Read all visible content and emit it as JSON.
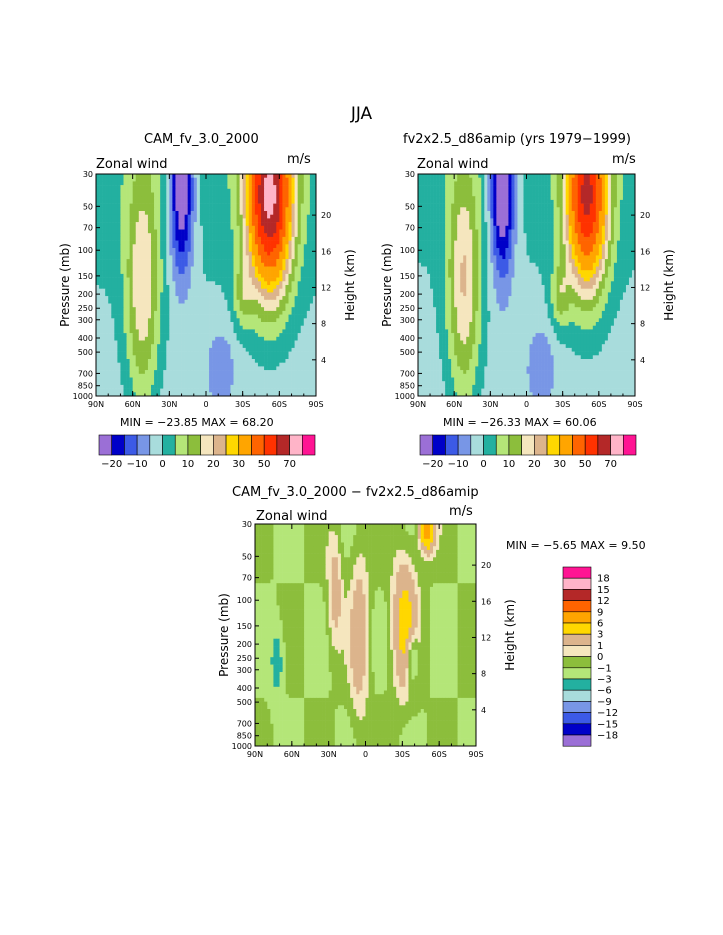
{
  "page": {
    "title": "JJA"
  },
  "palette": {
    "main": [
      "#9b6fd6",
      "#0000c8",
      "#3c5ae6",
      "#7896e6",
      "#a8dcdc",
      "#23b0a0",
      "#b4e678",
      "#8cbe3c",
      "#f5e6be",
      "#dcb48c",
      "#ffd700",
      "#ffa500",
      "#ff6400",
      "#ff3200",
      "#b42828",
      "#ffb4c8",
      "#ff1493"
    ],
    "diff": [
      "#9b6fd6",
      "#0000c8",
      "#3c5ae6",
      "#7896e6",
      "#a8dcdc",
      "#23b0a0",
      "#b4e678",
      "#8cbe3c",
      "#f5e6be",
      "#dcb48c",
      "#ffd700",
      "#ffa500",
      "#ff6400",
      "#b42828",
      "#ffb4c8",
      "#ff1493"
    ]
  },
  "chart_data": [
    {
      "type": "heatmap",
      "subtitle": "CAM_fv_3.0_2000",
      "variable": "Zonal wind",
      "units": "m/s",
      "ylabel": "Pressure (mb)",
      "ylabel_right": "Height (km)",
      "xticks": [
        "90N",
        "60N",
        "30N",
        "0",
        "30S",
        "60S",
        "90S"
      ],
      "yticks": [
        "30",
        "50",
        "70",
        "100",
        "150",
        "200",
        "250",
        "300",
        "400",
        "500",
        "700",
        "850",
        "1000"
      ],
      "height_ticks": [
        "20",
        "16",
        "12",
        "8",
        "4"
      ],
      "min_text": "MIN = −23.85   MAX =   68.20",
      "min": -23.85,
      "max": 68.2,
      "colorbar_labels": [
        "−20",
        "−10",
        "0",
        "10",
        "20",
        "30",
        "50",
        "70"
      ]
    },
    {
      "type": "heatmap",
      "subtitle": "fv2x2.5_d86amip (yrs 1979−1999)",
      "variable": "Zonal wind",
      "units": "m/s",
      "ylabel": "Pressure (mb)",
      "ylabel_right": "Height (km)",
      "xticks": [
        "90N",
        "60N",
        "30N",
        "0",
        "30S",
        "60S",
        "90S"
      ],
      "yticks": [
        "30",
        "50",
        "70",
        "100",
        "150",
        "200",
        "250",
        "300",
        "400",
        "500",
        "700",
        "850",
        "1000"
      ],
      "height_ticks": [
        "20",
        "16",
        "12",
        "8",
        "4"
      ],
      "min_text": "MIN = −26.33   MAX =   60.06",
      "min": -26.33,
      "max": 60.06,
      "colorbar_labels": [
        "−20",
        "−10",
        "0",
        "10",
        "20",
        "30",
        "50",
        "70"
      ]
    },
    {
      "type": "heatmap",
      "subtitle": "CAM_fv_3.0_2000 − fv2x2.5_d86amip",
      "variable": "Zonal wind",
      "units": "m/s",
      "ylabel": "Pressure (mb)",
      "ylabel_right": "Height (km)",
      "xticks": [
        "90N",
        "60N",
        "30N",
        "0",
        "30S",
        "60S",
        "90S"
      ],
      "yticks": [
        "30",
        "50",
        "70",
        "100",
        "150",
        "200",
        "250",
        "300",
        "400",
        "500",
        "700",
        "850",
        "1000"
      ],
      "height_ticks": [
        "20",
        "16",
        "12",
        "8",
        "4"
      ],
      "min_text": "MIN =   −5.65   MAX =    9.50",
      "min": -5.65,
      "max": 9.5,
      "colorbar_labels": [
        "18",
        "15",
        "12",
        "9",
        "6",
        "3",
        "1",
        "0",
        "−1",
        "−3",
        "−6",
        "−9",
        "−12",
        "−15",
        "−18"
      ]
    }
  ]
}
